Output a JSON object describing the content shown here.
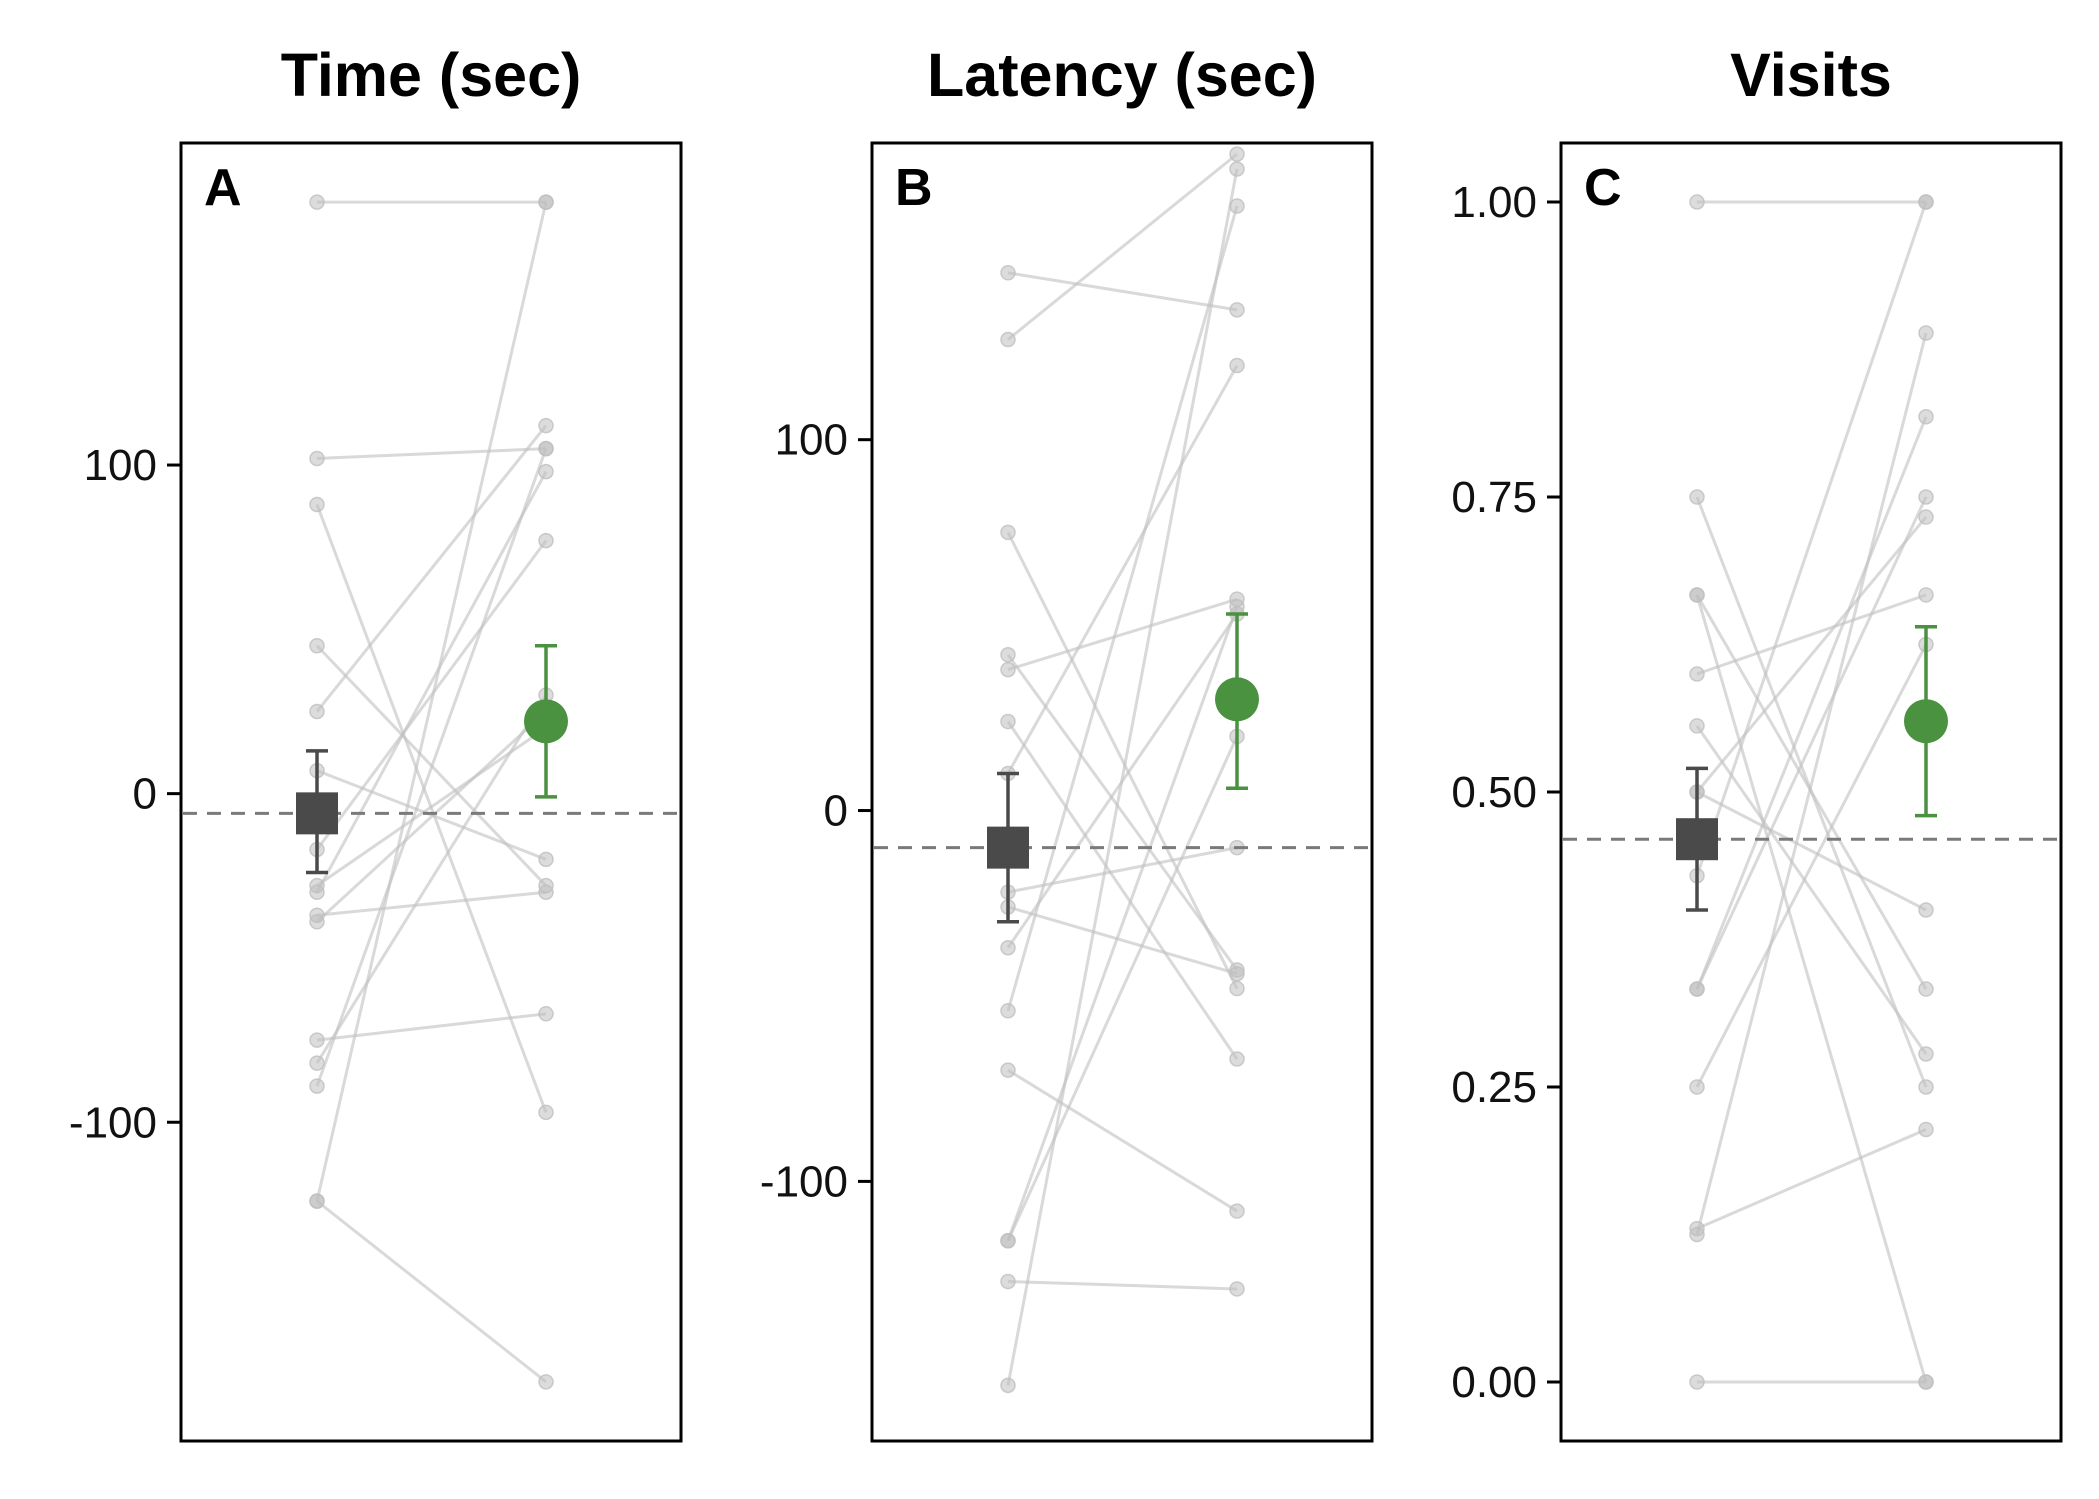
{
  "chart_data": [
    {
      "type": "scatter",
      "panel_label": "A",
      "title": "Time (sec)",
      "xlabel": "",
      "ylabel": "",
      "ylim": [
        -197,
        198
      ],
      "yticks": [
        -100,
        0,
        100
      ],
      "ytick_labels": [
        "-100",
        "0",
        "100"
      ],
      "grid": false,
      "individual_color": "#bfbfbf",
      "reference_line": -6,
      "pairs": [
        [
          180,
          180
        ],
        [
          102,
          105
        ],
        [
          88,
          -97
        ],
        [
          45,
          -28
        ],
        [
          25,
          112
        ],
        [
          7,
          -20
        ],
        [
          -17,
          77
        ],
        [
          -28,
          20
        ],
        [
          -30,
          98
        ],
        [
          -37,
          -30
        ],
        [
          -39,
          25
        ],
        [
          -75,
          -67
        ],
        [
          -82,
          30
        ],
        [
          -89,
          105
        ],
        [
          -124,
          180
        ],
        [
          -124,
          -179
        ]
      ],
      "summary": [
        {
          "group": "left",
          "mean": -6,
          "ci": [
            -24,
            13
          ],
          "color": "#4a4a4a",
          "marker": "square"
        },
        {
          "group": "right",
          "mean": 22,
          "ci": [
            -1,
            45
          ],
          "color": "#4a9140",
          "marker": "circle"
        }
      ]
    },
    {
      "type": "scatter",
      "panel_label": "B",
      "title": "Latency (sec)",
      "xlabel": "",
      "ylabel": "",
      "ylim": [
        -170,
        180
      ],
      "yticks": [
        -100,
        0,
        100
      ],
      "ytick_labels": [
        "-100",
        "0",
        "100"
      ],
      "grid": false,
      "individual_color": "#bfbfbf",
      "reference_line": -10,
      "pairs": [
        [
          145,
          135
        ],
        [
          127,
          177
        ],
        [
          75,
          -48
        ],
        [
          42,
          -43
        ],
        [
          38,
          57
        ],
        [
          24,
          -67
        ],
        [
          10,
          120
        ],
        [
          -22,
          -10
        ],
        [
          -37,
          53
        ],
        [
          -54,
          163
        ],
        [
          -70,
          -108
        ],
        [
          -116,
          55
        ],
        [
          -116,
          20
        ],
        [
          -127,
          -129
        ],
        [
          -155,
          173
        ],
        [
          -26,
          -44
        ]
      ],
      "summary": [
        {
          "group": "left",
          "mean": -10,
          "ci": [
            -30,
            10
          ],
          "color": "#4a4a4a",
          "marker": "square"
        },
        {
          "group": "right",
          "mean": 30,
          "ci": [
            6,
            53
          ],
          "color": "#4a9140",
          "marker": "circle"
        }
      ]
    },
    {
      "type": "scatter",
      "panel_label": "C",
      "title": "Visits",
      "xlabel": "",
      "ylabel": "",
      "ylim": [
        -0.05,
        1.05
      ],
      "yticks": [
        0.0,
        0.25,
        0.5,
        0.75,
        1.0
      ],
      "ytick_labels": [
        "0.00",
        "0.25",
        "0.50",
        "0.75",
        "1.00"
      ],
      "grid": false,
      "individual_color": "#bfbfbf",
      "reference_line": 0.46,
      "pairs": [
        [
          1.0,
          1.0
        ],
        [
          0.75,
          0.25
        ],
        [
          0.667,
          0.333
        ],
        [
          0.667,
          0.0
        ],
        [
          0.6,
          0.667
        ],
        [
          0.556,
          0.278
        ],
        [
          0.5,
          0.4
        ],
        [
          0.5,
          0.733
        ],
        [
          0.429,
          1.0
        ],
        [
          0.333,
          0.75
        ],
        [
          0.333,
          0.818
        ],
        [
          0.25,
          0.625
        ],
        [
          0.125,
          0.889
        ],
        [
          0.13,
          0.214
        ],
        [
          0.0,
          0.0
        ]
      ],
      "summary": [
        {
          "group": "left",
          "mean": 0.46,
          "ci": [
            0.4,
            0.52
          ],
          "color": "#4a4a4a",
          "marker": "square"
        },
        {
          "group": "right",
          "mean": 0.56,
          "ci": [
            0.48,
            0.64
          ],
          "color": "#4a9140",
          "marker": "circle"
        }
      ]
    }
  ]
}
